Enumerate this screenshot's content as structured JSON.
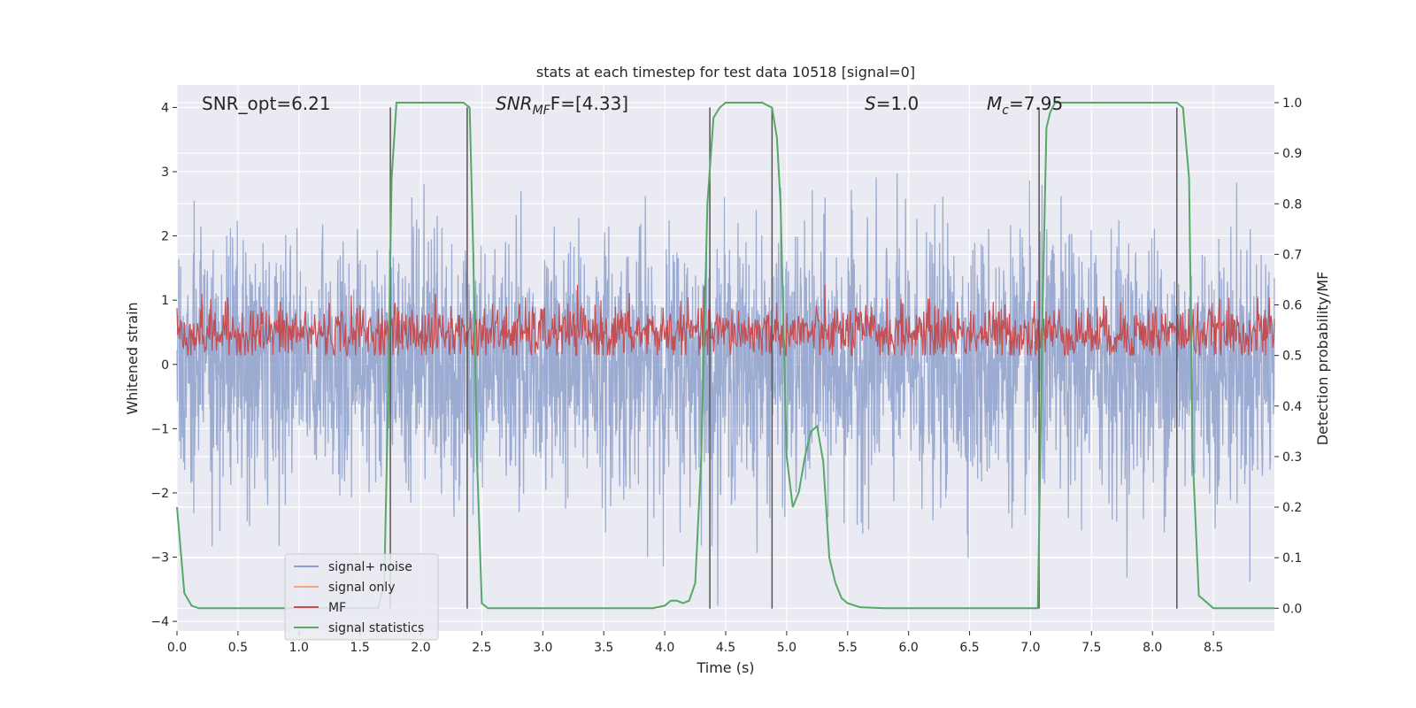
{
  "chart_data": {
    "type": "line",
    "title": "stats at each timestep for test data 10518 [signal=0]",
    "xlabel": "Time (s)",
    "ylabel": "Whitened strain",
    "y2label": "Detection probability/MF",
    "xlim": [
      0.0,
      9.0
    ],
    "ylim": [
      -4.15,
      4.35
    ],
    "y2lim": [
      -0.045,
      1.035
    ],
    "x_ticks": [
      "0.0",
      "0.5",
      "1.0",
      "1.5",
      "2.0",
      "2.5",
      "3.0",
      "3.5",
      "4.0",
      "4.5",
      "5.0",
      "5.5",
      "6.0",
      "6.5",
      "7.0",
      "7.5",
      "8.0",
      "8.5"
    ],
    "y_ticks": [
      "4",
      "3",
      "2",
      "1",
      "0",
      "−1",
      "−2",
      "−3",
      "−4"
    ],
    "y2_ticks": [
      "1.0",
      "0.9",
      "0.8",
      "0.7",
      "0.6",
      "0.5",
      "0.4",
      "0.3",
      "0.2",
      "0.1",
      "0.0"
    ],
    "grid": true,
    "legend_position": "lower-left",
    "annotations": {
      "snr_opt": "SNR_opt=6.21",
      "snr_mf_base": "SNR",
      "snr_mf_sub": "MF",
      "snr_mf_val": "F=[4.33]",
      "s_base": "S",
      "s_val": "=1.0",
      "mc_base": "M",
      "mc_sub": "c",
      "mc_val": "=7.95"
    },
    "series": [
      {
        "name": "signal+ noise",
        "color": "#8da0cb",
        "description": "whitened strain noise, approx. between -2.5 and 2.5 with peaks to +/-4",
        "amplitude": 1.0,
        "peak_max": 4.0,
        "peak_min": -3.8
      },
      {
        "name": "signal only",
        "color": "#f4a582",
        "values": []
      },
      {
        "name": "MF",
        "color": "#c44e52",
        "axis": "right",
        "baseline": 0.5,
        "range": [
          0.5,
          0.64
        ]
      },
      {
        "name": "signal statistics",
        "color": "#55a868",
        "axis": "right",
        "x": [
          0.0,
          0.06,
          0.12,
          0.18,
          0.3,
          0.6,
          0.9,
          1.2,
          1.5,
          1.65,
          1.7,
          1.73,
          1.76,
          1.8,
          1.83,
          2.0,
          2.2,
          2.3,
          2.35,
          2.4,
          2.43,
          2.46,
          2.5,
          2.55,
          3.0,
          3.5,
          3.9,
          4.0,
          4.05,
          4.1,
          4.15,
          4.2,
          4.25,
          4.3,
          4.35,
          4.4,
          4.45,
          4.5,
          4.55,
          4.7,
          4.8,
          4.88,
          4.92,
          4.95,
          4.98,
          5.0,
          5.05,
          5.1,
          5.15,
          5.2,
          5.25,
          5.3,
          5.35,
          5.4,
          5.45,
          5.5,
          5.6,
          5.8,
          6.5,
          7.0,
          7.06,
          7.1,
          7.13,
          7.16,
          7.2,
          7.5,
          8.0,
          8.2,
          8.25,
          8.3,
          8.33,
          8.38,
          8.5,
          9.0
        ],
        "y": [
          0.2,
          0.03,
          0.005,
          0.0,
          0.0,
          0.0,
          0.0,
          0.0,
          0.0,
          0.0,
          0.05,
          0.4,
          0.85,
          1.0,
          1.0,
          1.0,
          1.0,
          1.0,
          1.0,
          0.99,
          0.7,
          0.3,
          0.01,
          0.0,
          0.0,
          0.0,
          0.0,
          0.005,
          0.015,
          0.015,
          0.01,
          0.015,
          0.05,
          0.3,
          0.8,
          0.97,
          0.99,
          1.0,
          1.0,
          1.0,
          1.0,
          0.99,
          0.93,
          0.8,
          0.5,
          0.3,
          0.2,
          0.23,
          0.3,
          0.35,
          0.36,
          0.29,
          0.1,
          0.05,
          0.02,
          0.01,
          0.002,
          0.0,
          0.0,
          0.0,
          0.0,
          0.6,
          0.95,
          0.98,
          1.0,
          1.0,
          1.0,
          1.0,
          0.99,
          0.85,
          0.3,
          0.025,
          0.0,
          0.0
        ]
      }
    ],
    "vertical_lines": [
      1.75,
      2.38,
      4.37,
      4.88,
      7.07,
      8.2
    ]
  }
}
